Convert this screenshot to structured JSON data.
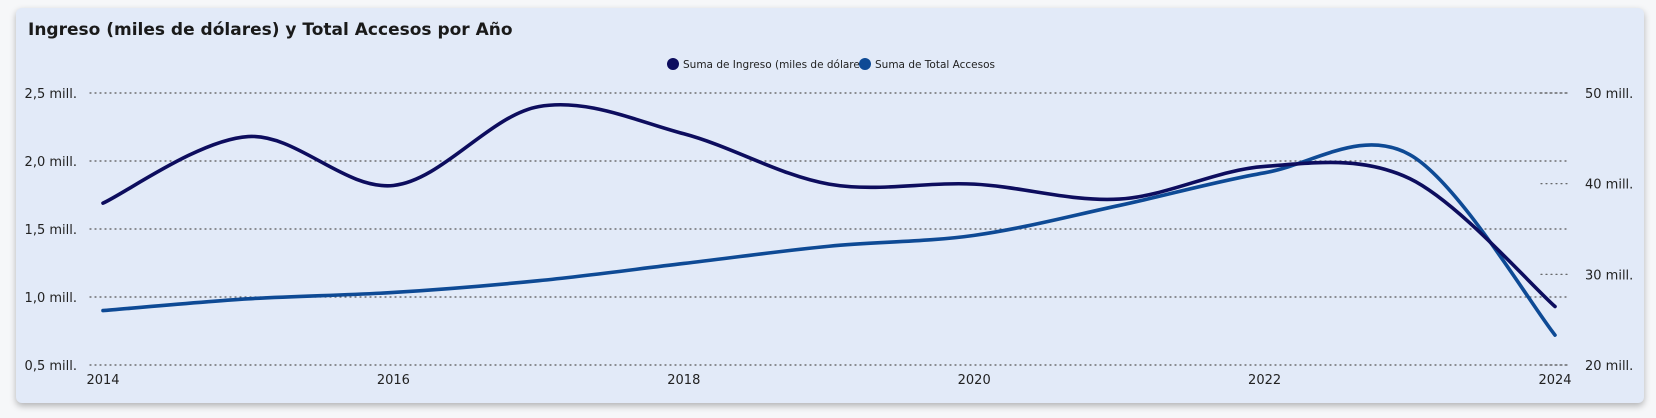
{
  "chart_data": {
    "type": "line",
    "title": "Ingreso (miles de dólares) y Total Accesos por Año",
    "x": [
      2014,
      2015,
      2016,
      2017,
      2018,
      2019,
      2020,
      2021,
      2022,
      2023,
      2024
    ],
    "x_ticks": [
      "2014",
      "2016",
      "2018",
      "2020",
      "2022",
      "2024"
    ],
    "y_left": {
      "ylim": [
        0.5,
        2.5
      ],
      "ticks": [
        0.5,
        1.0,
        1.5,
        2.0,
        2.5
      ],
      "tick_labels": [
        "0,5 mill.",
        "1,0 mill.",
        "1,5 mill.",
        "2,0 mill.",
        "2,5 mill."
      ]
    },
    "y_right": {
      "ylim": [
        20,
        50
      ],
      "ticks": [
        20,
        30,
        40,
        50
      ],
      "tick_labels": [
        "20 mill.",
        "30 mill.",
        "40 mill.",
        "50 mill."
      ]
    },
    "grid": true,
    "legend_position": "top-center",
    "series": [
      {
        "name": "Suma de Ingreso (miles de dólares)",
        "axis": "left",
        "color": "#0d0d5e",
        "values": [
          1.69,
          2.18,
          1.82,
          2.4,
          2.2,
          1.83,
          1.83,
          1.72,
          1.96,
          1.87,
          0.93
        ]
      },
      {
        "name": "Suma de Total Accesos",
        "axis": "right",
        "color": "#0e4a95",
        "values": [
          26.0,
          27.3,
          28.0,
          29.3,
          31.2,
          33.1,
          34.3,
          37.6,
          41.2,
          43.2,
          23.3
        ]
      }
    ]
  }
}
